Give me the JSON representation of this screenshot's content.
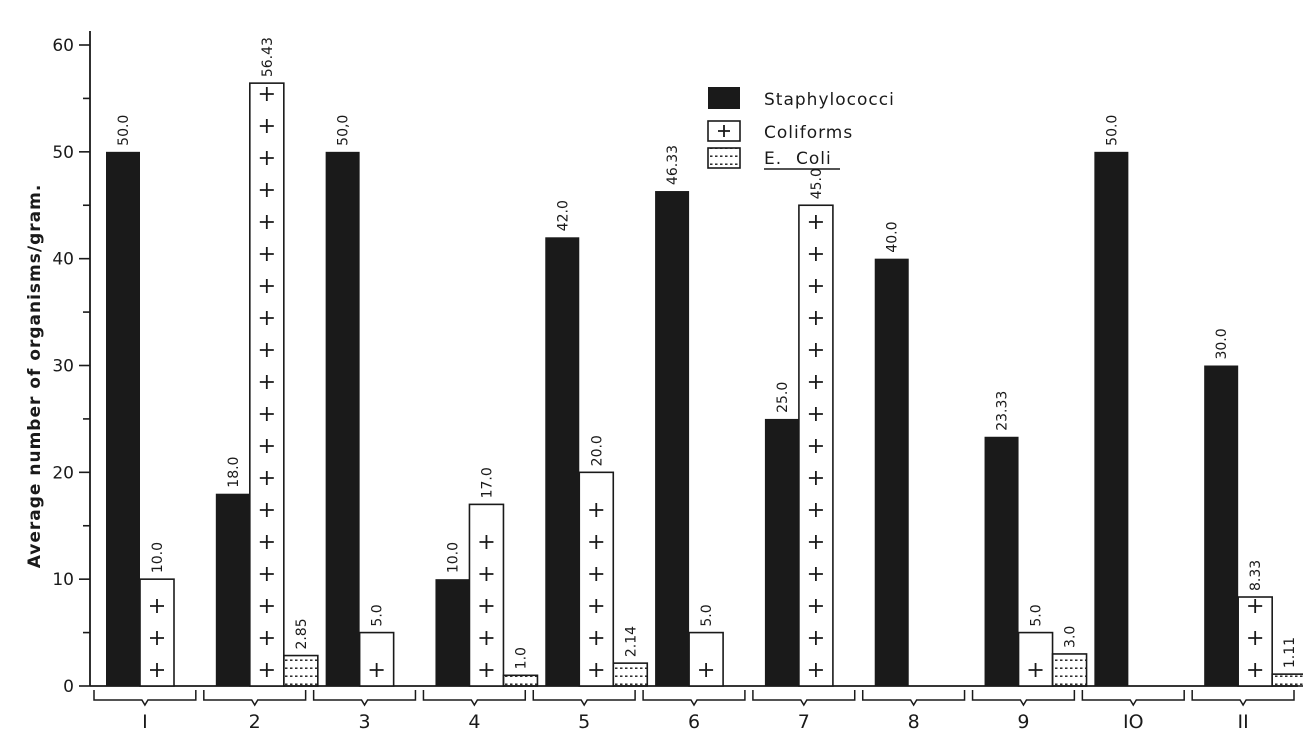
{
  "chart_data": {
    "type": "bar",
    "categories": [
      "I",
      "2",
      "3",
      "4",
      "5",
      "6",
      "7",
      "8",
      "9",
      "IO",
      "II"
    ],
    "series": [
      {
        "name": "Staphylococci",
        "values": [
          50.0,
          18.0,
          50.0,
          10.0,
          42.0,
          46.33,
          25.0,
          40.0,
          23.33,
          50.0,
          30.0
        ],
        "labels": [
          "50.0",
          "18.0",
          "50,0",
          "10.0",
          "42.0",
          "46.33",
          "25.0",
          "40.0",
          "23.33",
          "50.0",
          "30.0"
        ]
      },
      {
        "name": "Coliforms",
        "values": [
          10.0,
          56.43,
          5.0,
          17.0,
          20.0,
          5.0,
          45.0,
          null,
          5.0,
          null,
          8.33
        ],
        "labels": [
          "10.0",
          "56.43",
          "5.0",
          "17.0",
          "20.0",
          "5.0",
          "45.0",
          null,
          "5.0",
          null,
          "8.33"
        ]
      },
      {
        "name_prefix": "E.",
        "name_suffix": "Coli",
        "name": "E. Coli",
        "values": [
          null,
          2.85,
          null,
          1.0,
          2.14,
          null,
          null,
          null,
          3.0,
          null,
          1.11
        ],
        "labels": [
          null,
          "2.85",
          null,
          "1.0",
          "2.14",
          null,
          null,
          null,
          "3.0",
          null,
          "1.11"
        ]
      }
    ],
    "ylabel": "Average number of organisms/gram.",
    "yticks": [
      "0",
      "10",
      "20",
      "30",
      "40",
      "50",
      "60"
    ],
    "ylim": [
      0,
      60
    ],
    "grid": false,
    "legend_position": "top-center"
  }
}
